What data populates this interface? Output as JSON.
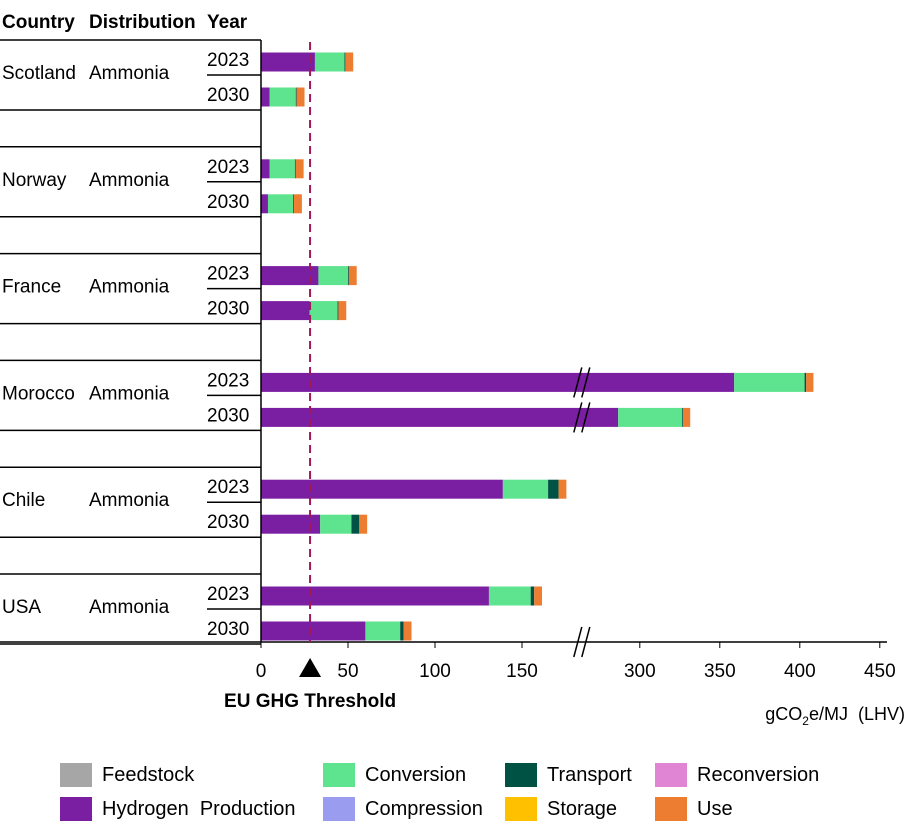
{
  "chart_data": {
    "type": "bar",
    "stacked": true,
    "orientation": "horizontal",
    "table_headers": [
      "Country",
      "Distribution",
      "Year"
    ],
    "xlabel": "gCO2e/MJ (LHV)",
    "xlabel_main": "gCO",
    "xlabel_sub": "2",
    "xlabel_rest": "e/MJ  (LHV)",
    "axis_break": true,
    "xlim_segments": [
      [
        0,
        185
      ],
      [
        265,
        450
      ]
    ],
    "xticks": [
      0,
      50,
      100,
      150,
      300,
      350,
      400,
      450
    ],
    "threshold": {
      "label": "EU GHG Threshold",
      "value": 28.2,
      "marker": "triangle-up",
      "color": "#a0185a"
    },
    "groups": [
      {
        "country": "Scotland",
        "distribution": "Ammonia",
        "years": [
          "2023",
          "2030"
        ]
      },
      {
        "country": "Norway",
        "distribution": "Ammonia",
        "years": [
          "2023",
          "2030"
        ]
      },
      {
        "country": "France",
        "distribution": "Ammonia",
        "years": [
          "2023",
          "2030"
        ]
      },
      {
        "country": "Morocco",
        "distribution": "Ammonia",
        "years": [
          "2023",
          "2030"
        ]
      },
      {
        "country": "Chile",
        "distribution": "Ammonia",
        "years": [
          "2023",
          "2030"
        ]
      },
      {
        "country": "USA",
        "distribution": "Ammonia",
        "years": [
          "2023",
          "2030"
        ]
      }
    ],
    "categories": [
      "Scotland Ammonia 2023",
      "Scotland Ammonia 2030",
      "Norway Ammonia 2023",
      "Norway Ammonia 2030",
      "France Ammonia 2023",
      "France Ammonia 2030",
      "Morocco Ammonia 2023",
      "Morocco Ammonia 2030",
      "Chile Ammonia 2023",
      "Chile Ammonia 2030",
      "USA Ammonia 2023",
      "USA Ammonia 2030"
    ],
    "series": [
      {
        "name": "Feedstock",
        "color": "#a6a6a6",
        "values": [
          0,
          0,
          0,
          0,
          0,
          0,
          0,
          0,
          0,
          0,
          0,
          0
        ]
      },
      {
        "name": "Hydrogen  Production",
        "color": "#7b1fa2",
        "values": [
          31,
          5,
          5,
          4,
          33,
          28,
          359,
          286.5,
          139,
          34,
          131,
          60
        ]
      },
      {
        "name": "Conversion",
        "color": "#5ee38e",
        "values": [
          17,
          15,
          14.5,
          14.5,
          17,
          16,
          44,
          40,
          26,
          18,
          24,
          20
        ]
      },
      {
        "name": "Compression",
        "color": "#9a9cf0",
        "values": [
          0,
          0,
          0,
          0,
          0,
          0,
          0,
          0,
          0,
          0,
          0,
          0
        ]
      },
      {
        "name": "Transport",
        "color": "#005245",
        "values": [
          0.5,
          0.5,
          0.5,
          0.5,
          0.5,
          0.5,
          1,
          0.5,
          6,
          4.5,
          2,
          2
        ]
      },
      {
        "name": "Storage",
        "color": "#ffc000",
        "values": [
          0,
          0,
          0,
          0,
          0,
          0,
          0,
          0,
          0,
          0,
          0,
          0
        ]
      },
      {
        "name": "Reconversion",
        "color": "#e085d4",
        "values": [
          0,
          0,
          0,
          0,
          0,
          0,
          0,
          0,
          0,
          0,
          0,
          0
        ]
      },
      {
        "name": "Use",
        "color": "#ed7d31",
        "values": [
          4.5,
          4.5,
          4.5,
          4.5,
          4.5,
          4.5,
          4.5,
          4.5,
          4.5,
          4.5,
          4.5,
          4.5
        ]
      }
    ],
    "legend": {
      "placement": "bottom",
      "order": [
        "Feedstock",
        "Conversion",
        "Transport",
        "Reconversion",
        "Hydrogen  Production",
        "Compression",
        "Storage",
        "Use"
      ]
    }
  }
}
